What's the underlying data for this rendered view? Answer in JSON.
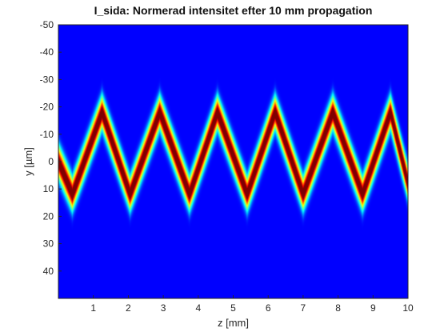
{
  "chart_data": {
    "type": "heatmap",
    "title": "I_sida: Normerad intensitet efter 10 mm propagation",
    "xlabel": "z [mm]",
    "ylabel": "y [µm]",
    "xlim": [
      0,
      10
    ],
    "ylim": [
      -50,
      50
    ],
    "y_direction": "reversed",
    "x_ticks": [
      1,
      2,
      3,
      4,
      5,
      6,
      7,
      8,
      9,
      10
    ],
    "y_ticks": [
      -50,
      -40,
      -30,
      -20,
      -10,
      0,
      10,
      20,
      30,
      40
    ],
    "colormap": "jet",
    "intensity_range": [
      0,
      1
    ],
    "beam_path": {
      "shape": "triangle wave (zig-zag)",
      "z_mm": [
        0,
        0.4,
        1.25,
        2.05,
        2.9,
        3.75,
        4.55,
        5.4,
        6.2,
        7.0,
        7.85,
        8.7,
        9.5,
        10
      ],
      "y_um": [
        0,
        12,
        -18,
        12,
        -18,
        12,
        -18,
        12,
        -18,
        12,
        -18,
        12,
        -18,
        8
      ]
    },
    "beam_width_um": 3,
    "colors": {
      "background": "#00008f",
      "low": "#00ffff",
      "mid": "#ffff00",
      "peak": "#800000"
    }
  }
}
